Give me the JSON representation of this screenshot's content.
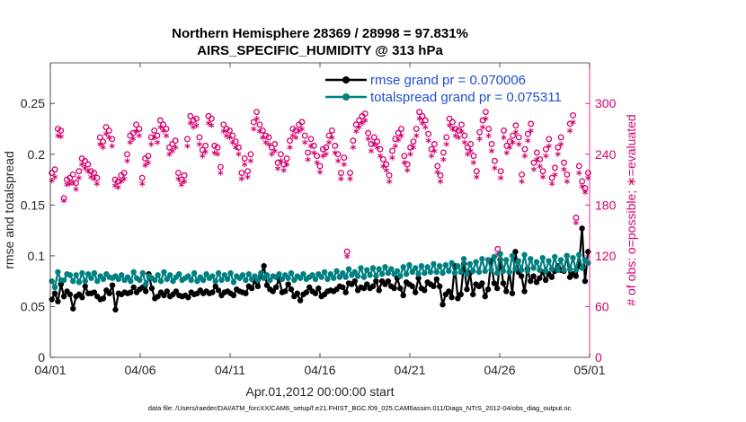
{
  "chart_data": {
    "type": "line",
    "title": "Northern Hemisphere 28369 / 28998 = 97.831%",
    "subtitle": "AIRS_SPECIFIC_HUMIDITY @ 313 hPa",
    "xlabel": "Apr.01,2012 00:00:00 start",
    "ylabel_left": "rmse and totalspread",
    "ylabel_right": "# of obs: o=possible; ∗=evaluated",
    "footnote": "data file: /Users/raeder/DAI/ATM_forcXX/CAM6_setup/f.e21.FHIST_BGC.f09_025.CAM6assim.011/Diags_NTrS_2012-04/obs_diag_output.nc",
    "x_ticks": [
      "04/01",
      "04/06",
      "04/11",
      "04/16",
      "04/21",
      "04/26",
      "05/01"
    ],
    "x_range_days": [
      0,
      30
    ],
    "y_left_ticks": [
      "0",
      "0.05",
      "0.1",
      "0.15",
      "0.2",
      "0.25"
    ],
    "y_left_range": [
      0,
      0.29
    ],
    "y_right_ticks": [
      "0",
      "60",
      "120",
      "180",
      "240",
      "300"
    ],
    "y_right_range": [
      0,
      348
    ],
    "legend": [
      {
        "label": "rmse grand pr = 0.070006",
        "color": "#000000"
      },
      {
        "label": "totalspread grand pr = 0.075311",
        "color": "#008080"
      }
    ],
    "series": [
      {
        "name": "rmse grand pr = 0.070006",
        "axis": "left",
        "color": "#000000",
        "values": [
          0.057,
          0.063,
          0.055,
          0.072,
          0.06,
          0.065,
          0.062,
          0.048,
          0.06,
          0.062,
          0.059,
          0.07,
          0.063,
          0.063,
          0.064,
          0.06,
          0.057,
          0.058,
          0.066,
          0.063,
          0.071,
          0.047,
          0.063,
          0.062,
          0.064,
          0.063,
          0.064,
          0.069,
          0.064,
          0.067,
          0.069,
          0.065,
          0.082,
          0.068,
          0.058,
          0.06,
          0.064,
          0.061,
          0.065,
          0.06,
          0.062,
          0.065,
          0.061,
          0.06,
          0.061,
          0.059,
          0.064,
          0.062,
          0.063,
          0.066,
          0.063,
          0.065,
          0.063,
          0.064,
          0.07,
          0.066,
          0.061,
          0.064,
          0.065,
          0.063,
          0.061,
          0.067,
          0.065,
          0.064,
          0.063,
          0.07,
          0.068,
          0.075,
          0.07,
          0.08,
          0.09,
          0.071,
          0.067,
          0.065,
          0.069,
          0.077,
          0.064,
          0.065,
          0.072,
          0.067,
          0.06,
          0.063,
          0.056,
          0.062,
          0.064,
          0.069,
          0.065,
          0.063,
          0.068,
          0.06,
          0.062,
          0.065,
          0.066,
          0.065,
          0.067,
          0.07,
          0.069,
          0.064,
          0.073,
          0.072,
          0.075,
          0.066,
          0.069,
          0.068,
          0.072,
          0.068,
          0.07,
          0.075,
          0.066,
          0.075,
          0.072,
          0.075,
          0.07,
          0.068,
          0.078,
          0.068,
          0.061,
          0.074,
          0.072,
          0.07,
          0.064,
          0.078,
          0.068,
          0.066,
          0.074,
          0.072,
          0.07,
          0.077,
          0.07,
          0.052,
          0.062,
          0.065,
          0.059,
          0.09,
          0.058,
          0.062,
          0.092,
          0.067,
          0.083,
          0.062,
          0.072,
          0.07,
          0.073,
          0.06,
          0.067,
          0.095,
          0.073,
          0.068,
          0.096,
          0.073,
          0.065,
          0.084,
          0.063,
          0.104,
          0.084,
          0.08,
          0.065,
          0.087,
          0.075,
          0.08,
          0.074,
          0.078,
          0.084,
          0.076,
          0.082,
          0.079,
          0.085,
          0.09,
          0.086,
          0.085,
          0.1,
          0.079,
          0.082,
          0.08,
          0.09,
          0.127,
          0.075,
          0.104
        ]
      },
      {
        "name": "totalspread grand pr = 0.075311",
        "axis": "left",
        "color": "#008080",
        "values": [
          0.075,
          0.069,
          0.084,
          0.076,
          0.076,
          0.082,
          0.081,
          0.075,
          0.081,
          0.074,
          0.083,
          0.075,
          0.082,
          0.078,
          0.083,
          0.075,
          0.08,
          0.077,
          0.082,
          0.079,
          0.078,
          0.08,
          0.077,
          0.081,
          0.076,
          0.079,
          0.075,
          0.084,
          0.078,
          0.076,
          0.083,
          0.072,
          0.08,
          0.078,
          0.076,
          0.081,
          0.075,
          0.084,
          0.077,
          0.081,
          0.075,
          0.079,
          0.082,
          0.076,
          0.078,
          0.08,
          0.076,
          0.083,
          0.075,
          0.079,
          0.076,
          0.082,
          0.078,
          0.08,
          0.075,
          0.083,
          0.076,
          0.081,
          0.077,
          0.083,
          0.074,
          0.08,
          0.078,
          0.081,
          0.076,
          0.082,
          0.077,
          0.08,
          0.076,
          0.083,
          0.078,
          0.081,
          0.076,
          0.08,
          0.079,
          0.082,
          0.077,
          0.081,
          0.078,
          0.083,
          0.076,
          0.08,
          0.078,
          0.082,
          0.077,
          0.079,
          0.081,
          0.077,
          0.082,
          0.079,
          0.084,
          0.077,
          0.082,
          0.078,
          0.085,
          0.079,
          0.083,
          0.079,
          0.087,
          0.081,
          0.084,
          0.08,
          0.088,
          0.079,
          0.086,
          0.081,
          0.088,
          0.08,
          0.087,
          0.082,
          0.089,
          0.083,
          0.087,
          0.082,
          0.085,
          0.08,
          0.089,
          0.082,
          0.091,
          0.084,
          0.088,
          0.082,
          0.09,
          0.083,
          0.089,
          0.084,
          0.092,
          0.084,
          0.09,
          0.083,
          0.091,
          0.085,
          0.093,
          0.083,
          0.09,
          0.084,
          0.097,
          0.082,
          0.092,
          0.085,
          0.094,
          0.084,
          0.097,
          0.085,
          0.096,
          0.086,
          0.099,
          0.083,
          0.102,
          0.085,
          0.096,
          0.084,
          0.1,
          0.087,
          0.095,
          0.086,
          0.101,
          0.085,
          0.097,
          0.088,
          0.094,
          0.086,
          0.098,
          0.085,
          0.095,
          0.087,
          0.099,
          0.086,
          0.096,
          0.086,
          0.1,
          0.087,
          0.098,
          0.086,
          0.101,
          0.088,
          0.096,
          0.093
        ]
      },
      {
        "name": "o=possible",
        "axis": "right",
        "color": "#d6006e",
        "values": [
          218,
          222,
          270,
          268,
          188,
          210,
          212,
          216,
          206,
          220,
          235,
          232,
          228,
          220,
          218,
          212,
          260,
          255,
          272,
          268,
          258,
          210,
          208,
          215,
          218,
          240,
          262,
          265,
          275,
          270,
          212,
          235,
          238,
          260,
          268,
          262,
          280,
          275,
          270,
          248,
          252,
          256,
          218,
          210,
          215,
          258,
          285,
          280,
          282,
          260,
          245,
          250,
          285,
          282,
          250,
          248,
          225,
          275,
          270,
          268,
          262,
          255,
          248,
          218,
          235,
          220,
          240,
          278,
          290,
          275,
          268,
          262,
          260,
          248,
          252,
          230,
          240,
          228,
          235,
          256,
          270,
          268,
          275,
          278,
          262,
          242,
          258,
          250,
          238,
          226,
          246,
          248,
          262,
          268,
          250,
          240,
          218,
          236,
          125,
          218,
          256,
          275,
          280,
          285,
          288,
          265,
          252,
          260,
          255,
          246,
          234,
          228,
          215,
          244,
          258,
          265,
          270,
          238,
          228,
          248,
          255,
          270,
          290,
          285,
          280,
          264,
          246,
          252,
          226,
          215,
          242,
          260,
          282,
          278,
          270,
          268,
          275,
          262,
          248,
          252,
          238,
          220,
          266,
          280,
          290,
          270,
          252,
          232,
          128,
          220,
          268,
          250,
          255,
          262,
          274,
          260,
          216,
          246,
          264,
          276,
          230,
          242,
          234,
          220,
          246,
          258,
          212,
          224,
          248,
          260,
          230,
          216,
          276,
          286,
          165,
          226,
          208,
          200,
          218
        ]
      },
      {
        "name": "∗=evaluated",
        "axis": "right",
        "color": "#d6006e",
        "values": [
          207,
          211,
          260,
          259,
          183,
          202,
          203,
          205,
          197,
          210,
          226,
          222,
          218,
          211,
          209,
          203,
          250,
          246,
          262,
          258,
          248,
          201,
          199,
          206,
          209,
          230,
          252,
          256,
          265,
          260,
          203,
          225,
          228,
          250,
          258,
          252,
          270,
          266,
          260,
          238,
          242,
          246,
          209,
          202,
          206,
          248,
          275,
          270,
          272,
          250,
          236,
          241,
          275,
          272,
          240,
          238,
          216,
          265,
          260,
          258,
          252,
          246,
          238,
          209,
          226,
          211,
          230,
          268,
          280,
          265,
          258,
          252,
          250,
          238,
          242,
          221,
          230,
          219,
          226,
          246,
          260,
          258,
          265,
          268,
          252,
          232,
          248,
          240,
          228,
          217,
          236,
          238,
          252,
          258,
          240,
          230,
          209,
          226,
          117,
          209,
          246,
          265,
          270,
          275,
          278,
          256,
          242,
          250,
          246,
          236,
          224,
          219,
          206,
          234,
          248,
          255,
          260,
          228,
          219,
          238,
          246,
          260,
          280,
          275,
          270,
          254,
          236,
          242,
          217,
          206,
          232,
          250,
          272,
          268,
          260,
          258,
          265,
          252,
          238,
          242,
          228,
          211,
          256,
          270,
          280,
          260,
          242,
          222,
          120,
          210,
          258,
          240,
          246,
          252,
          264,
          250,
          206,
          236,
          254,
          266,
          220,
          232,
          224,
          211,
          236,
          248,
          203,
          214,
          238,
          250,
          220,
          206,
          266,
          276,
          157,
          216,
          200,
          193,
          210
        ]
      }
    ]
  }
}
